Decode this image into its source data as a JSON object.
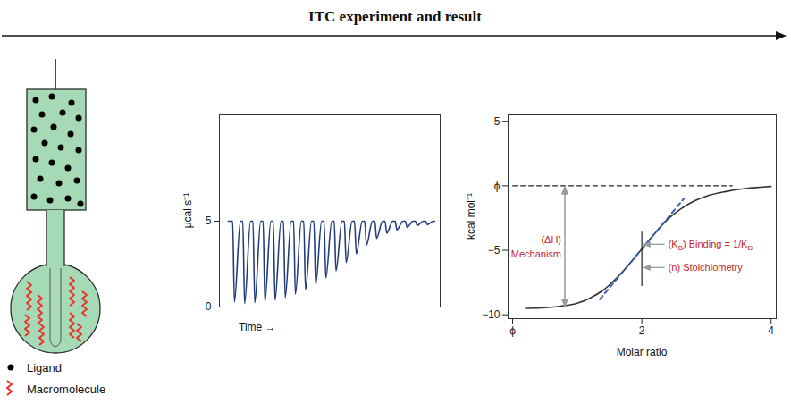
{
  "header": {
    "title": "ITC experiment and result"
  },
  "schematic": {
    "legend": [
      {
        "label": "Ligand",
        "marker": "dot",
        "color": "#000000"
      },
      {
        "label": "Macromolecule",
        "marker": "squiggle",
        "color": "#e8352b"
      }
    ]
  },
  "chart_data": [
    {
      "type": "line",
      "y_label": "μcal s⁻¹",
      "x_label": "Time →",
      "x": [
        4,
        6,
        6.8,
        9.5,
        10.6,
        11.4,
        14.1,
        15.2,
        16,
        18.7,
        19.8,
        20.6,
        23.3,
        24.4,
        25.2,
        27.9,
        29,
        29.8,
        32.5,
        33.6,
        34.4,
        37.1,
        38.2,
        39,
        41.7,
        42.8,
        43.6,
        46.3,
        47.4,
        48.2,
        50.9,
        52,
        52.8,
        55.5,
        56.6,
        57.4,
        60.1,
        61.2,
        62,
        64.7,
        65.8,
        66.6,
        69.3,
        70.4,
        71.2,
        73.9,
        75,
        75.8,
        78.5,
        79.6,
        80.4,
        83.1,
        84.2,
        85,
        87.7,
        88.8,
        89.6,
        92.3,
        93.4,
        94.2,
        96.9,
        97.5
      ],
      "values": [
        5,
        5,
        0.3,
        5,
        5,
        0.2,
        5,
        5,
        0.25,
        5,
        5,
        0.3,
        5,
        5,
        0.4,
        5,
        5,
        0.55,
        5,
        5,
        0.75,
        5,
        5,
        1.0,
        5,
        5,
        1.3,
        5,
        5,
        1.7,
        5,
        5,
        2.1,
        5,
        5,
        2.6,
        5,
        5,
        3.1,
        5,
        5,
        3.6,
        5,
        5,
        4.0,
        5,
        5,
        4.3,
        5,
        5,
        4.5,
        5,
        5,
        4.65,
        5,
        5,
        4.75,
        5,
        5,
        4.8,
        5,
        5
      ],
      "color": "#243c7c",
      "xlim": [
        0,
        100
      ],
      "ylim": [
        0,
        11.2
      ],
      "xticks": [],
      "yticks": [
        0,
        5
      ],
      "tick_labels": "y"
    },
    {
      "type": "line",
      "y_label": "kcal mol⁻¹",
      "x_label": "Molar ratio",
      "x": [
        0.2,
        0.5,
        0.8,
        1.0,
        1.2,
        1.4,
        1.6,
        1.8,
        2.0,
        2.2,
        2.4,
        2.6,
        2.8,
        3.0,
        3.3,
        3.6,
        4.0
      ],
      "values": [
        -9.5,
        -9.45,
        -9.3,
        -9.1,
        -8.7,
        -8.1,
        -7.2,
        -6.1,
        -4.9,
        -3.7,
        -2.6,
        -1.8,
        -1.2,
        -0.8,
        -0.45,
        -0.22,
        -0.05
      ],
      "color": "#333333",
      "xlim": [
        -0.07,
        4.08
      ],
      "ylim": [
        -10.3,
        5.5
      ],
      "xticks": [
        {
          "value": 0,
          "label": "ϕ"
        },
        2,
        4
      ],
      "yticks": [
        {
          "value": -10,
          "label": "−10"
        },
        {
          "value": -5,
          "label": "−5"
        },
        {
          "value": 0,
          "label": "ϕ"
        },
        5
      ],
      "zero_line": {
        "x": [
          0,
          3.4
        ],
        "y": 0,
        "line_style": "dashed",
        "color": "#222222"
      },
      "tangent": {
        "x": [
          1.35,
          2.65
        ],
        "y": [
          -8.8,
          -1.0
        ],
        "line_style": "dashed",
        "color": "#3a5fb0"
      },
      "midpoint_line": {
        "x": 2,
        "y": [
          -3.6,
          -7.8
        ],
        "color": "#222222"
      },
      "delta_h": {
        "label_lines": [
          "(ΔH)",
          "Mechanism"
        ],
        "y": [
          0,
          -9.5
        ],
        "color": "#c1272d"
      },
      "binding": {
        "parts": [
          {
            "text": "(K"
          },
          {
            "text": "B",
            "sub": true
          },
          {
            "text": ") Binding = 1/K"
          },
          {
            "text": "D",
            "sub": true
          }
        ],
        "color": "#c1272d"
      },
      "stoichiometry": {
        "text": "(n) Stoichiometry",
        "color": "#c1272d"
      }
    }
  ]
}
